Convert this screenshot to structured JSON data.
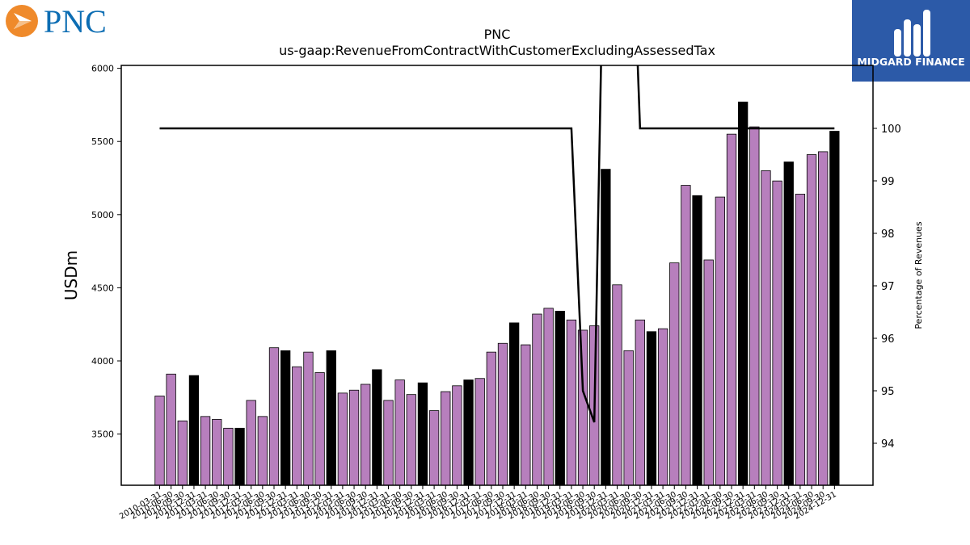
{
  "brand": {
    "left_logo_text": "PNC",
    "right_logo_text": "MIDGARD FINANCE",
    "colors": {
      "pnc_orange": "#ef8a2b",
      "pnc_blue": "#0c6db3",
      "midgard_blue": "#2c5aa8",
      "bar_purple": "#b77fbd",
      "bar_black": "#000000"
    }
  },
  "chart_data": {
    "type": "bar",
    "title": "PNC",
    "subtitle": "us-gaap:RevenueFromContractWithCustomerExcludingAssessedTax",
    "ylabel": "USDm",
    "y2label": "Percentage of Revenues",
    "ylim": [
      3150,
      6020
    ],
    "y2lim": [
      93.2,
      101.2
    ],
    "yticks": [
      "3500",
      "4000",
      "4500",
      "5000",
      "5500",
      "6000"
    ],
    "y2ticks": [
      "94",
      "95",
      "96",
      "97",
      "98",
      "99",
      "100"
    ],
    "categories": [
      "2010-03-31",
      "2010-06-30",
      "2010-09-30",
      "2010-12-31",
      "2011-03-31",
      "2011-06-30",
      "2011-09-30",
      "2011-12-31",
      "2012-03-31",
      "2012-06-30",
      "2012-09-30",
      "2012-12-31",
      "2013-03-31",
      "2013-06-30",
      "2013-09-30",
      "2013-12-31",
      "2014-03-31",
      "2014-06-30",
      "2014-09-30",
      "2014-12-31",
      "2015-03-31",
      "2015-06-30",
      "2015-09-30",
      "2015-12-31",
      "2016-03-31",
      "2016-06-30",
      "2016-09-30",
      "2016-12-31",
      "2017-03-31",
      "2017-06-30",
      "2017-09-30",
      "2017-12-31",
      "2018-03-31",
      "2018-06-30",
      "2018-09-30",
      "2018-12-31",
      "2019-03-31",
      "2019-06-30",
      "2019-09-30",
      "2019-12-31",
      "2020-03-31",
      "2020-06-30",
      "2020-09-30",
      "2020-12-31",
      "2021-03-31",
      "2021-06-30",
      "2021-09-30",
      "2021-12-31",
      "2022-03-31",
      "2022-06-30",
      "2022-09-30",
      "2022-12-31",
      "2023-03-31",
      "2023-06-30",
      "2023-09-30",
      "2023-12-31",
      "2024-03-31",
      "2024-06-30",
      "2024-09-30",
      "2024-12-31"
    ],
    "values": [
      3760,
      3910,
      3590,
      3900,
      3620,
      3600,
      3540,
      3540,
      3730,
      3620,
      4090,
      4070,
      3960,
      4060,
      3920,
      4070,
      3780,
      3800,
      3840,
      3940,
      3730,
      3870,
      3770,
      3850,
      3660,
      3790,
      3830,
      3870,
      3880,
      4060,
      4120,
      4260,
      4110,
      4320,
      4360,
      4340,
      4280,
      4210,
      4240,
      5310,
      4520,
      4070,
      4280,
      4200,
      4220,
      4670,
      5200,
      5130,
      4690,
      5120,
      5550,
      5770,
      5600,
      5300,
      5230,
      5360,
      5140,
      5410,
      5430,
      5570
    ],
    "highlight": [
      false,
      false,
      false,
      true,
      false,
      false,
      false,
      true,
      false,
      false,
      false,
      true,
      false,
      false,
      false,
      true,
      false,
      false,
      false,
      true,
      false,
      false,
      false,
      true,
      false,
      false,
      false,
      true,
      false,
      false,
      false,
      true,
      false,
      false,
      false,
      true,
      false,
      false,
      false,
      true,
      false,
      false,
      false,
      true,
      false,
      false,
      false,
      true,
      false,
      false,
      false,
      true,
      false,
      false,
      false,
      true,
      false,
      false,
      false,
      true
    ],
    "line_series": {
      "name": "",
      "axis": "right",
      "values": [
        100,
        100,
        100,
        100,
        100,
        100,
        100,
        100,
        100,
        100,
        100,
        100,
        100,
        100,
        100,
        100,
        100,
        100,
        100,
        100,
        100,
        100,
        100,
        100,
        100,
        100,
        100,
        100,
        100,
        100,
        100,
        100,
        100,
        100,
        100,
        100,
        100,
        95,
        94.4,
        106,
        106,
        106,
        100,
        100,
        100,
        100,
        100,
        100,
        100,
        100,
        100,
        100,
        100,
        100,
        100,
        100,
        100,
        100,
        100,
        100
      ]
    }
  }
}
